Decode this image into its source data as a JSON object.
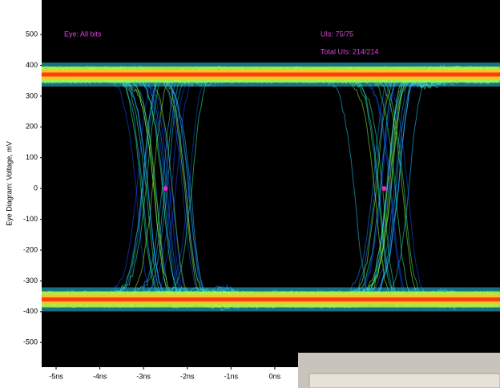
{
  "chart_data": {
    "type": "eye",
    "y_label": "Eye Diagram: Voltage, mV",
    "annotations": [
      "Eye: All bits",
      "UIs: 75/75",
      "Total UIs: 214/214"
    ],
    "xlim": [
      -5.33,
      5.15
    ],
    "ylim": [
      -580,
      612
    ],
    "xticks": [
      {
        "value": -5,
        "label": "-5ns"
      },
      {
        "value": -4,
        "label": "-4ns"
      },
      {
        "value": -3,
        "label": "-3ns"
      },
      {
        "value": -2,
        "label": "-2ns"
      },
      {
        "value": -1,
        "label": "-1ns"
      },
      {
        "value": 0,
        "label": "0ns"
      }
    ],
    "yticks": [
      500,
      400,
      300,
      200,
      100,
      0,
      -100,
      -200,
      -300,
      -400,
      -500
    ],
    "levels": [
      370,
      -360
    ],
    "crossings": {
      "x": [
        -2.5,
        2.5
      ],
      "y": [
        0,
        0
      ],
      "color": "#ff20c0"
    },
    "annotation_color": "#e040e0"
  }
}
